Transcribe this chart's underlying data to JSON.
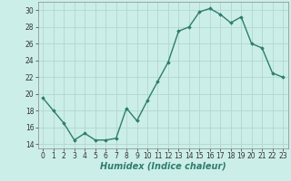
{
  "x": [
    0,
    1,
    2,
    3,
    4,
    5,
    6,
    7,
    8,
    9,
    10,
    11,
    12,
    13,
    14,
    15,
    16,
    17,
    18,
    19,
    20,
    21,
    22,
    23
  ],
  "y": [
    19.5,
    18.0,
    16.5,
    14.5,
    15.3,
    14.5,
    14.5,
    14.7,
    18.3,
    16.8,
    19.2,
    21.5,
    23.8,
    27.5,
    28.0,
    29.8,
    30.2,
    29.5,
    28.5,
    29.2,
    26.0,
    25.5,
    22.5,
    22.0
  ],
  "line_color": "#2e7d6e",
  "marker": "D",
  "marker_size": 1.8,
  "bg_color": "#cceee8",
  "grid_color": "#b0d8d0",
  "xlabel": "Humidex (Indice chaleur)",
  "xlim": [
    -0.5,
    23.5
  ],
  "ylim": [
    13.5,
    31
  ],
  "yticks": [
    14,
    16,
    18,
    20,
    22,
    24,
    26,
    28,
    30
  ],
  "xticks": [
    0,
    1,
    2,
    3,
    4,
    5,
    6,
    7,
    8,
    9,
    10,
    11,
    12,
    13,
    14,
    15,
    16,
    17,
    18,
    19,
    20,
    21,
    22,
    23
  ],
  "tick_fontsize": 5.5,
  "xlabel_fontsize": 7.0,
  "line_width": 1.0
}
